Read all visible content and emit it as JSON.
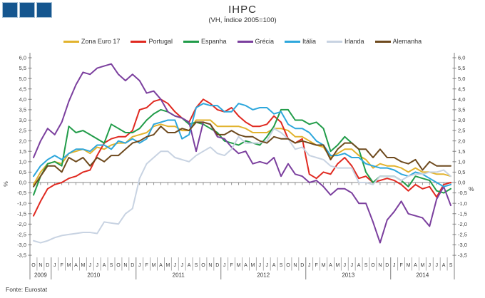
{
  "logo": {
    "square_count": 3,
    "fill": "#15568F",
    "border": "#A8C2D6"
  },
  "header": {
    "title": "IHPC",
    "subtitle": "(VH, Índice 2005=100)"
  },
  "footer": {
    "source": "Fonte: Eurostat"
  },
  "axes": {
    "y_left_label": "%",
    "y_right_label": "%"
  },
  "chart_data": {
    "type": "line",
    "title": "IHPC",
    "subtitle": "(VH, Índice 2005=100)",
    "ylabel": "%",
    "ylim": [
      -3.5,
      6.0
    ],
    "ytick_step": 0.5,
    "decimal_separator": ",",
    "grid": "zero-line-only",
    "legend_position": "top",
    "x_months": [
      "O",
      "N",
      "D",
      "J",
      "F",
      "M",
      "A",
      "M",
      "J",
      "J",
      "A",
      "S",
      "O",
      "N",
      "D",
      "J",
      "F",
      "M",
      "A",
      "M",
      "J",
      "J",
      "A",
      "S",
      "O",
      "N",
      "D",
      "J",
      "F",
      "M",
      "A",
      "M",
      "J",
      "J",
      "A",
      "S",
      "O",
      "N",
      "D",
      "J",
      "F",
      "M",
      "A",
      "M",
      "J",
      "J",
      "A",
      "S",
      "O",
      "N",
      "D",
      "J",
      "F",
      "M",
      "A",
      "M",
      "J",
      "J",
      "A",
      "S"
    ],
    "x_years": [
      {
        "label": "2009",
        "months": 3
      },
      {
        "label": "2010",
        "months": 12
      },
      {
        "label": "2011",
        "months": 12
      },
      {
        "label": "2012",
        "months": 12
      },
      {
        "label": "2013",
        "months": 12
      },
      {
        "label": "2014",
        "months": 9
      }
    ],
    "series": [
      {
        "name": "Zona Euro 17",
        "color": "#E2B32E",
        "values": [
          -0.1,
          0.5,
          0.9,
          1.0,
          0.9,
          1.4,
          1.5,
          1.6,
          1.4,
          1.7,
          1.6,
          1.8,
          1.9,
          1.9,
          2.2,
          2.3,
          2.4,
          2.7,
          2.8,
          2.7,
          2.7,
          2.5,
          2.5,
          3.0,
          3.0,
          3.0,
          2.7,
          2.7,
          2.7,
          2.7,
          2.6,
          2.4,
          2.4,
          2.4,
          2.6,
          2.6,
          2.5,
          2.2,
          2.2,
          2.0,
          1.8,
          1.7,
          1.2,
          1.4,
          1.6,
          1.6,
          1.3,
          1.1,
          0.7,
          0.9,
          0.8,
          0.8,
          0.7,
          0.5,
          0.7,
          0.5,
          0.5,
          0.4,
          0.4,
          0.3
        ]
      },
      {
        "name": "Portugal",
        "color": "#E02920",
        "values": [
          -1.6,
          -0.9,
          -0.3,
          -0.1,
          0.0,
          0.2,
          0.3,
          0.5,
          0.6,
          1.3,
          1.9,
          2.1,
          2.2,
          2.2,
          2.5,
          3.5,
          3.6,
          3.9,
          4.0,
          3.8,
          3.4,
          3.1,
          2.9,
          3.6,
          4.0,
          3.8,
          3.5,
          3.4,
          3.6,
          3.2,
          2.9,
          2.7,
          2.7,
          2.8,
          3.2,
          2.9,
          2.1,
          1.9,
          2.1,
          0.4,
          0.2,
          0.5,
          0.4,
          0.9,
          1.2,
          0.8,
          0.2,
          0.3,
          0.0,
          0.1,
          0.2,
          0.1,
          -0.1,
          -0.4,
          -0.1,
          -0.3,
          -0.2,
          -0.7,
          -0.1,
          0.0
        ]
      },
      {
        "name": "Espanha",
        "color": "#219C49",
        "values": [
          -0.6,
          0.3,
          0.9,
          1.0,
          0.8,
          2.7,
          2.4,
          2.5,
          2.3,
          2.1,
          1.9,
          2.8,
          2.6,
          2.4,
          2.4,
          2.6,
          3.0,
          3.3,
          3.5,
          3.4,
          3.2,
          3.1,
          2.8,
          2.9,
          2.8,
          2.6,
          2.4,
          2.0,
          1.9,
          1.8,
          2.0,
          1.9,
          1.8,
          2.2,
          2.7,
          3.5,
          3.5,
          3.0,
          3.0,
          2.8,
          2.9,
          2.6,
          1.5,
          1.8,
          2.2,
          1.9,
          1.6,
          0.5,
          0.0,
          0.3,
          0.3,
          0.3,
          0.1,
          -0.2,
          0.3,
          0.2,
          0.1,
          -0.4,
          -0.5,
          -0.3
        ]
      },
      {
        "name": "Grécia",
        "color": "#7B3F9E",
        "values": [
          1.2,
          2.0,
          2.6,
          2.3,
          2.9,
          3.9,
          4.7,
          5.3,
          5.2,
          5.5,
          5.6,
          5.7,
          5.2,
          4.9,
          5.2,
          4.9,
          4.3,
          4.4,
          4.0,
          3.4,
          3.2,
          3.1,
          2.9,
          1.5,
          2.9,
          2.8,
          2.2,
          2.1,
          1.7,
          1.4,
          1.5,
          0.9,
          1.0,
          0.9,
          1.2,
          0.3,
          0.9,
          0.4,
          0.3,
          0.0,
          0.1,
          -0.2,
          -0.6,
          -0.3,
          -0.3,
          -0.5,
          -1.0,
          -1.0,
          -1.9,
          -2.9,
          -1.8,
          -1.4,
          -0.9,
          -1.5,
          -1.6,
          -1.7,
          -2.1,
          -0.8,
          -0.2,
          -1.1
        ]
      },
      {
        "name": "Itália",
        "color": "#2EA7DC",
        "values": [
          0.3,
          0.8,
          1.1,
          1.3,
          1.1,
          1.4,
          1.6,
          1.6,
          1.5,
          1.8,
          1.8,
          1.6,
          2.0,
          1.9,
          2.1,
          1.9,
          2.1,
          2.8,
          2.9,
          3.0,
          3.0,
          2.1,
          2.3,
          3.6,
          3.8,
          3.7,
          3.7,
          3.4,
          3.4,
          3.8,
          3.7,
          3.5,
          3.6,
          3.6,
          3.3,
          3.4,
          2.8,
          2.6,
          2.6,
          2.4,
          2.0,
          1.8,
          1.3,
          1.3,
          1.4,
          1.2,
          1.2,
          0.9,
          0.8,
          0.7,
          0.7,
          0.6,
          0.4,
          0.3,
          0.5,
          0.4,
          0.2,
          0.0,
          -0.2,
          -0.1
        ]
      },
      {
        "name": "Irlanda",
        "color": "#C8D3E2",
        "values": [
          -2.8,
          -2.9,
          -2.8,
          -2.65,
          -2.55,
          -2.5,
          -2.45,
          -2.4,
          -2.4,
          -2.45,
          -1.9,
          -1.95,
          -2.0,
          -1.5,
          -1.25,
          0.2,
          0.9,
          1.2,
          1.5,
          1.5,
          1.2,
          1.1,
          1.0,
          1.3,
          1.5,
          1.7,
          1.4,
          1.3,
          1.6,
          2.2,
          1.9,
          1.9,
          1.9,
          2.0,
          2.6,
          2.4,
          2.1,
          1.6,
          1.7,
          1.3,
          1.2,
          1.1,
          0.8,
          0.7,
          0.7,
          0.7,
          0.0,
          0.0,
          -0.1,
          0.3,
          0.3,
          0.3,
          0.1,
          0.3,
          0.4,
          0.4,
          0.5,
          0.5,
          0.6,
          0.3
        ]
      },
      {
        "name": "Alemanha",
        "color": "#6E4A1E",
        "values": [
          -0.2,
          0.3,
          0.8,
          0.8,
          0.5,
          1.2,
          1.0,
          1.2,
          0.8,
          1.2,
          1.0,
          1.3,
          1.3,
          1.6,
          1.9,
          2.0,
          2.2,
          2.3,
          2.7,
          2.4,
          2.4,
          2.6,
          2.5,
          2.9,
          2.9,
          2.8,
          2.3,
          2.3,
          2.5,
          2.3,
          2.2,
          2.2,
          2.0,
          1.9,
          2.2,
          2.1,
          2.1,
          1.9,
          2.0,
          1.9,
          1.8,
          1.8,
          1.1,
          1.6,
          1.9,
          1.9,
          1.6,
          1.6,
          1.2,
          1.6,
          1.2,
          1.2,
          1.0,
          0.9,
          1.1,
          0.6,
          1.0,
          0.8,
          0.8,
          0.8
        ]
      }
    ]
  }
}
